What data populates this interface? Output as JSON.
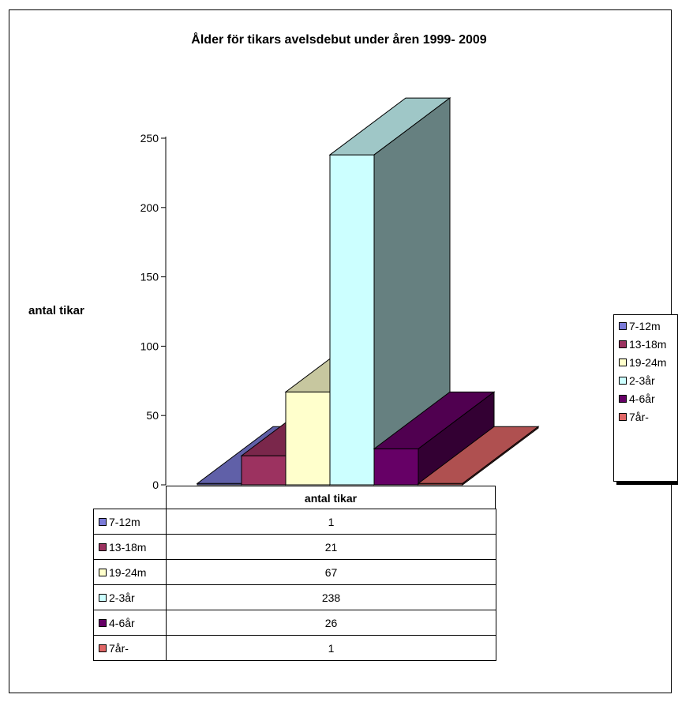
{
  "chart_data": {
    "type": "bar",
    "title": "Ålder för tikars avelsdebut under åren 1999- 2009",
    "ylabel": "antal tikar",
    "xlabel": "antal tikar",
    "ylim": [
      0,
      250
    ],
    "yticks": [
      "0",
      "50",
      "100",
      "150",
      "200",
      "250"
    ],
    "grid": false,
    "legend_position": "right",
    "categories": [
      "antal tikar"
    ],
    "series": [
      {
        "name": "7-12m",
        "values": [
          1
        ],
        "color": "#7b7bd8"
      },
      {
        "name": "13-18m",
        "values": [
          21
        ],
        "color": "#9c3260"
      },
      {
        "name": "19-24m",
        "values": [
          67
        ],
        "color": "#ffffcc"
      },
      {
        "name": "2-3år",
        "values": [
          238
        ],
        "color": "#ccffff"
      },
      {
        "name": "4-6år",
        "values": [
          26
        ],
        "color": "#660066"
      },
      {
        "name": "7år-",
        "values": [
          1
        ],
        "color": "#e06666"
      }
    ]
  }
}
